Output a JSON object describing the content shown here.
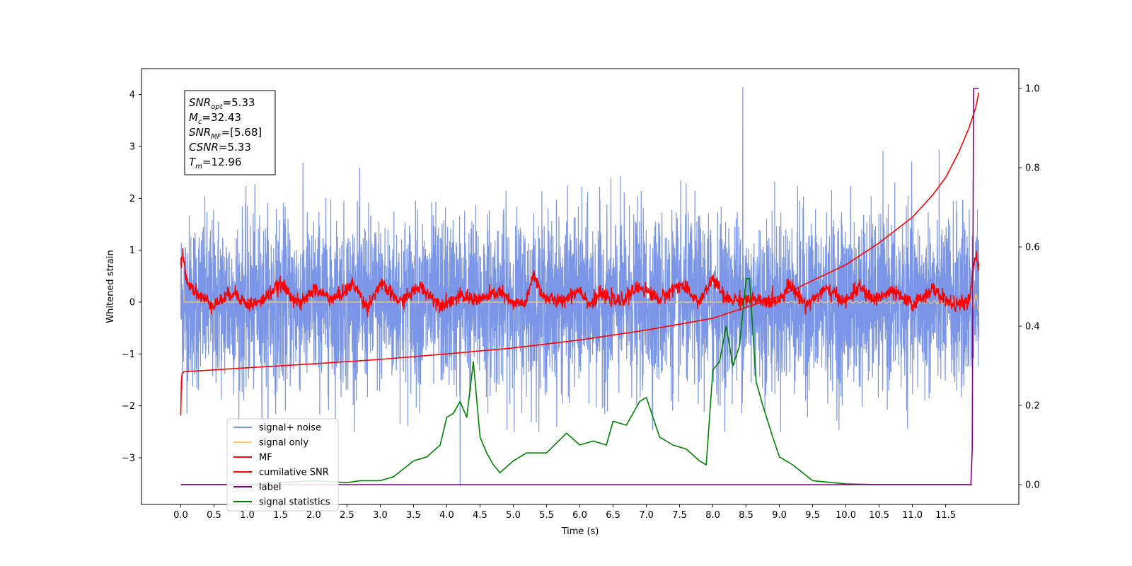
{
  "chart_data": {
    "type": "line",
    "xlabel": "Time (s)",
    "ylabel_left": "Whitened strain",
    "ylabel_right": "",
    "xlim": [
      -0.59,
      12.6
    ],
    "ylim_left": [
      -3.9,
      4.5
    ],
    "ylim_right": [
      -0.05,
      1.05
    ],
    "x_ticks": [
      "0.0",
      "0.5",
      "1.0",
      "1.5",
      "2.0",
      "2.5",
      "3.0",
      "3.5",
      "4.0",
      "4.5",
      "5.0",
      "5.5",
      "6.0",
      "6.5",
      "7.0",
      "7.5",
      "8.0",
      "8.5",
      "9.0",
      "9.5",
      "10.0",
      "10.5",
      "11.0",
      "11.5"
    ],
    "y_ticks_left": [
      -3,
      -2,
      -1,
      0,
      1,
      2,
      3,
      4
    ],
    "y_ticks_right": [
      0.0,
      0.2,
      0.4,
      0.6,
      0.8,
      1.0
    ],
    "grid": false,
    "legend_position": "lower-left",
    "info_box": {
      "lines": [
        {
          "sym": "SNR",
          "sub": "opt",
          "val": "=5.33"
        },
        {
          "sym": "M",
          "sub": "c",
          "val": "=32.43"
        },
        {
          "sym": "SNR",
          "sub": "MF",
          "val": "=[5.68]"
        },
        {
          "sym": "CSNR",
          "sub": "",
          "val": "=5.33"
        },
        {
          "sym": "T",
          "sub": "m",
          "val": "=12.96"
        }
      ]
    },
    "series": [
      {
        "name": "signal+ noise",
        "color": "#7b96e6",
        "axis": "left",
        "note_values": "noise envelope approx: min ~-2.5, max ~3.0, spikes 4.15 at 8.45, -3.55 at 4.2"
      },
      {
        "name": "signal only",
        "color": "#f5c97a",
        "axis": "left",
        "x": [
          0.0,
          2.0,
          4.0,
          6.0,
          8.0,
          10.0,
          11.5,
          11.8,
          11.95,
          12.0
        ],
        "values": [
          0.0,
          0.0,
          0.0,
          0.0,
          0.02,
          0.05,
          0.1,
          0.2,
          0.5,
          0.6
        ]
      },
      {
        "name": "MF",
        "color": "#ff0000",
        "axis": "left",
        "x": [
          0.0,
          0.03,
          0.1,
          0.3,
          0.5,
          0.8,
          1.0,
          1.2,
          1.5,
          1.8,
          2.0,
          2.3,
          2.6,
          2.8,
          3.0,
          3.3,
          3.6,
          3.9,
          4.2,
          4.5,
          4.8,
          5.0,
          5.2,
          5.3,
          5.45,
          5.7,
          6.0,
          6.15,
          6.3,
          6.6,
          6.9,
          7.2,
          7.5,
          7.8,
          8.0,
          8.2,
          8.5,
          8.8,
          9.0,
          9.15,
          9.4,
          9.7,
          10.0,
          10.2,
          10.4,
          10.7,
          11.0,
          11.3,
          11.6,
          11.85,
          11.95,
          12.0
        ],
        "values": [
          0.7,
          0.9,
          0.4,
          0.1,
          -0.05,
          0.2,
          -0.05,
          0.0,
          0.35,
          -0.05,
          0.25,
          0.05,
          0.35,
          -0.1,
          0.35,
          0.0,
          0.3,
          -0.05,
          0.1,
          0.05,
          0.2,
          -0.05,
          0.0,
          0.55,
          0.1,
          0.0,
          0.25,
          -0.05,
          0.15,
          0.0,
          0.3,
          0.05,
          0.35,
          0.0,
          0.45,
          0.05,
          0.05,
          0.0,
          0.05,
          0.35,
          -0.05,
          0.25,
          0.0,
          0.3,
          0.05,
          0.2,
          -0.05,
          0.25,
          -0.05,
          0.0,
          0.9,
          0.7
        ]
      },
      {
        "name": "cumilative SNR",
        "color": "#ff0000",
        "axis": "right",
        "x": [
          0.0,
          0.01,
          0.02,
          0.05,
          1.0,
          2.0,
          3.0,
          4.0,
          5.0,
          6.0,
          7.0,
          8.0,
          9.0,
          10.0,
          10.5,
          11.0,
          11.3,
          11.5,
          11.7,
          11.85,
          11.95,
          12.0
        ],
        "values": [
          0.175,
          0.26,
          0.28,
          0.285,
          0.295,
          0.305,
          0.316,
          0.33,
          0.345,
          0.365,
          0.39,
          0.42,
          0.475,
          0.555,
          0.61,
          0.675,
          0.73,
          0.775,
          0.84,
          0.9,
          0.95,
          0.99
        ]
      },
      {
        "name": "label",
        "color": "#800080",
        "axis": "right",
        "x": [
          0.0,
          11.88,
          11.9,
          11.92,
          12.0
        ],
        "values": [
          0.0,
          0.0,
          0.09,
          1.0,
          1.0
        ]
      },
      {
        "name": "signal statistics",
        "color": "#008000",
        "axis": "right",
        "x": [
          0.0,
          1.0,
          2.0,
          2.5,
          2.7,
          3.0,
          3.2,
          3.5,
          3.7,
          3.9,
          4.0,
          4.1,
          4.2,
          4.3,
          4.4,
          4.5,
          4.6,
          4.7,
          4.8,
          5.0,
          5.2,
          5.5,
          5.8,
          6.0,
          6.2,
          6.4,
          6.5,
          6.7,
          6.9,
          7.0,
          7.2,
          7.4,
          7.6,
          7.8,
          7.9,
          8.0,
          8.1,
          8.2,
          8.3,
          8.4,
          8.5,
          8.55,
          8.65,
          8.75,
          8.9,
          9.0,
          9.2,
          9.5,
          10.0,
          10.5,
          11.0,
          11.9
        ],
        "values": [
          0.0,
          0.0,
          0.01,
          0.005,
          0.01,
          0.01,
          0.02,
          0.06,
          0.07,
          0.1,
          0.17,
          0.18,
          0.21,
          0.17,
          0.31,
          0.12,
          0.08,
          0.05,
          0.03,
          0.06,
          0.08,
          0.08,
          0.13,
          0.1,
          0.11,
          0.1,
          0.16,
          0.15,
          0.21,
          0.22,
          0.12,
          0.1,
          0.09,
          0.06,
          0.05,
          0.29,
          0.31,
          0.4,
          0.3,
          0.35,
          0.52,
          0.52,
          0.26,
          0.2,
          0.12,
          0.07,
          0.05,
          0.01,
          0.002,
          0.0,
          0.0,
          0.0
        ]
      }
    ]
  }
}
